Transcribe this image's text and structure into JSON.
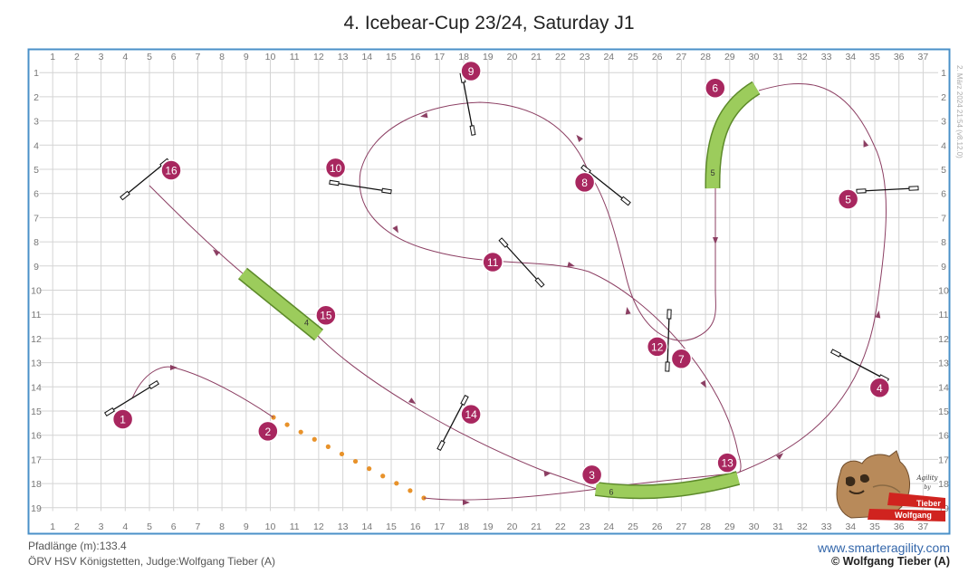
{
  "title": "4. Icebear-Cup 23/24, Saturday J1",
  "footer": {
    "path_length": "Pfadlänge (m):133.4",
    "club_judge": "ÖRV HSV Königstetten, Judge:Wolfgang Tieber (A)",
    "website": "www.smarteragility.com",
    "copyright": "© Wolfgang Tieber (A)",
    "stamp": "2. März 2024 21:54 (v8.12.0)"
  },
  "logo": {
    "line1": "Tieber",
    "line2": "Wolfgang"
  },
  "grid": {
    "columns": 37,
    "rows": 19
  },
  "colors": {
    "frame": "#4a90c8",
    "grid": "#d4d4d4",
    "path": "#8c3f63",
    "marker": "#a8275f",
    "tunnel": "#9ccc5c",
    "tunnel_edge": "#5d8a2a",
    "lead": "#e8922a"
  },
  "numbers": [
    {
      "n": "1",
      "x": 3.9,
      "y": 15.3
    },
    {
      "n": "2",
      "x": 9.9,
      "y": 15.8
    },
    {
      "n": "3",
      "x": 23.3,
      "y": 17.6
    },
    {
      "n": "4",
      "x": 35.2,
      "y": 14.0
    },
    {
      "n": "5",
      "x": 33.9,
      "y": 6.2
    },
    {
      "n": "6",
      "x": 28.4,
      "y": 1.6
    },
    {
      "n": "7",
      "x": 27.0,
      "y": 12.8
    },
    {
      "n": "8",
      "x": 23.0,
      "y": 5.5
    },
    {
      "n": "9",
      "x": 18.3,
      "y": 0.9
    },
    {
      "n": "10",
      "x": 12.7,
      "y": 4.9
    },
    {
      "n": "11",
      "x": 19.2,
      "y": 8.8
    },
    {
      "n": "12",
      "x": 26.0,
      "y": 12.3
    },
    {
      "n": "13",
      "x": 28.9,
      "y": 17.1
    },
    {
      "n": "14",
      "x": 18.3,
      "y": 15.1
    },
    {
      "n": "15",
      "x": 12.3,
      "y": 11.0
    },
    {
      "n": "16",
      "x": 5.9,
      "y": 5.0
    }
  ],
  "tunnel_labels": [
    {
      "n": "4",
      "x": 11.5,
      "y": 11.3
    },
    {
      "n": "5",
      "x": 28.3,
      "y": 5.1
    },
    {
      "n": "6",
      "x": 24.1,
      "y": 18.3
    }
  ]
}
